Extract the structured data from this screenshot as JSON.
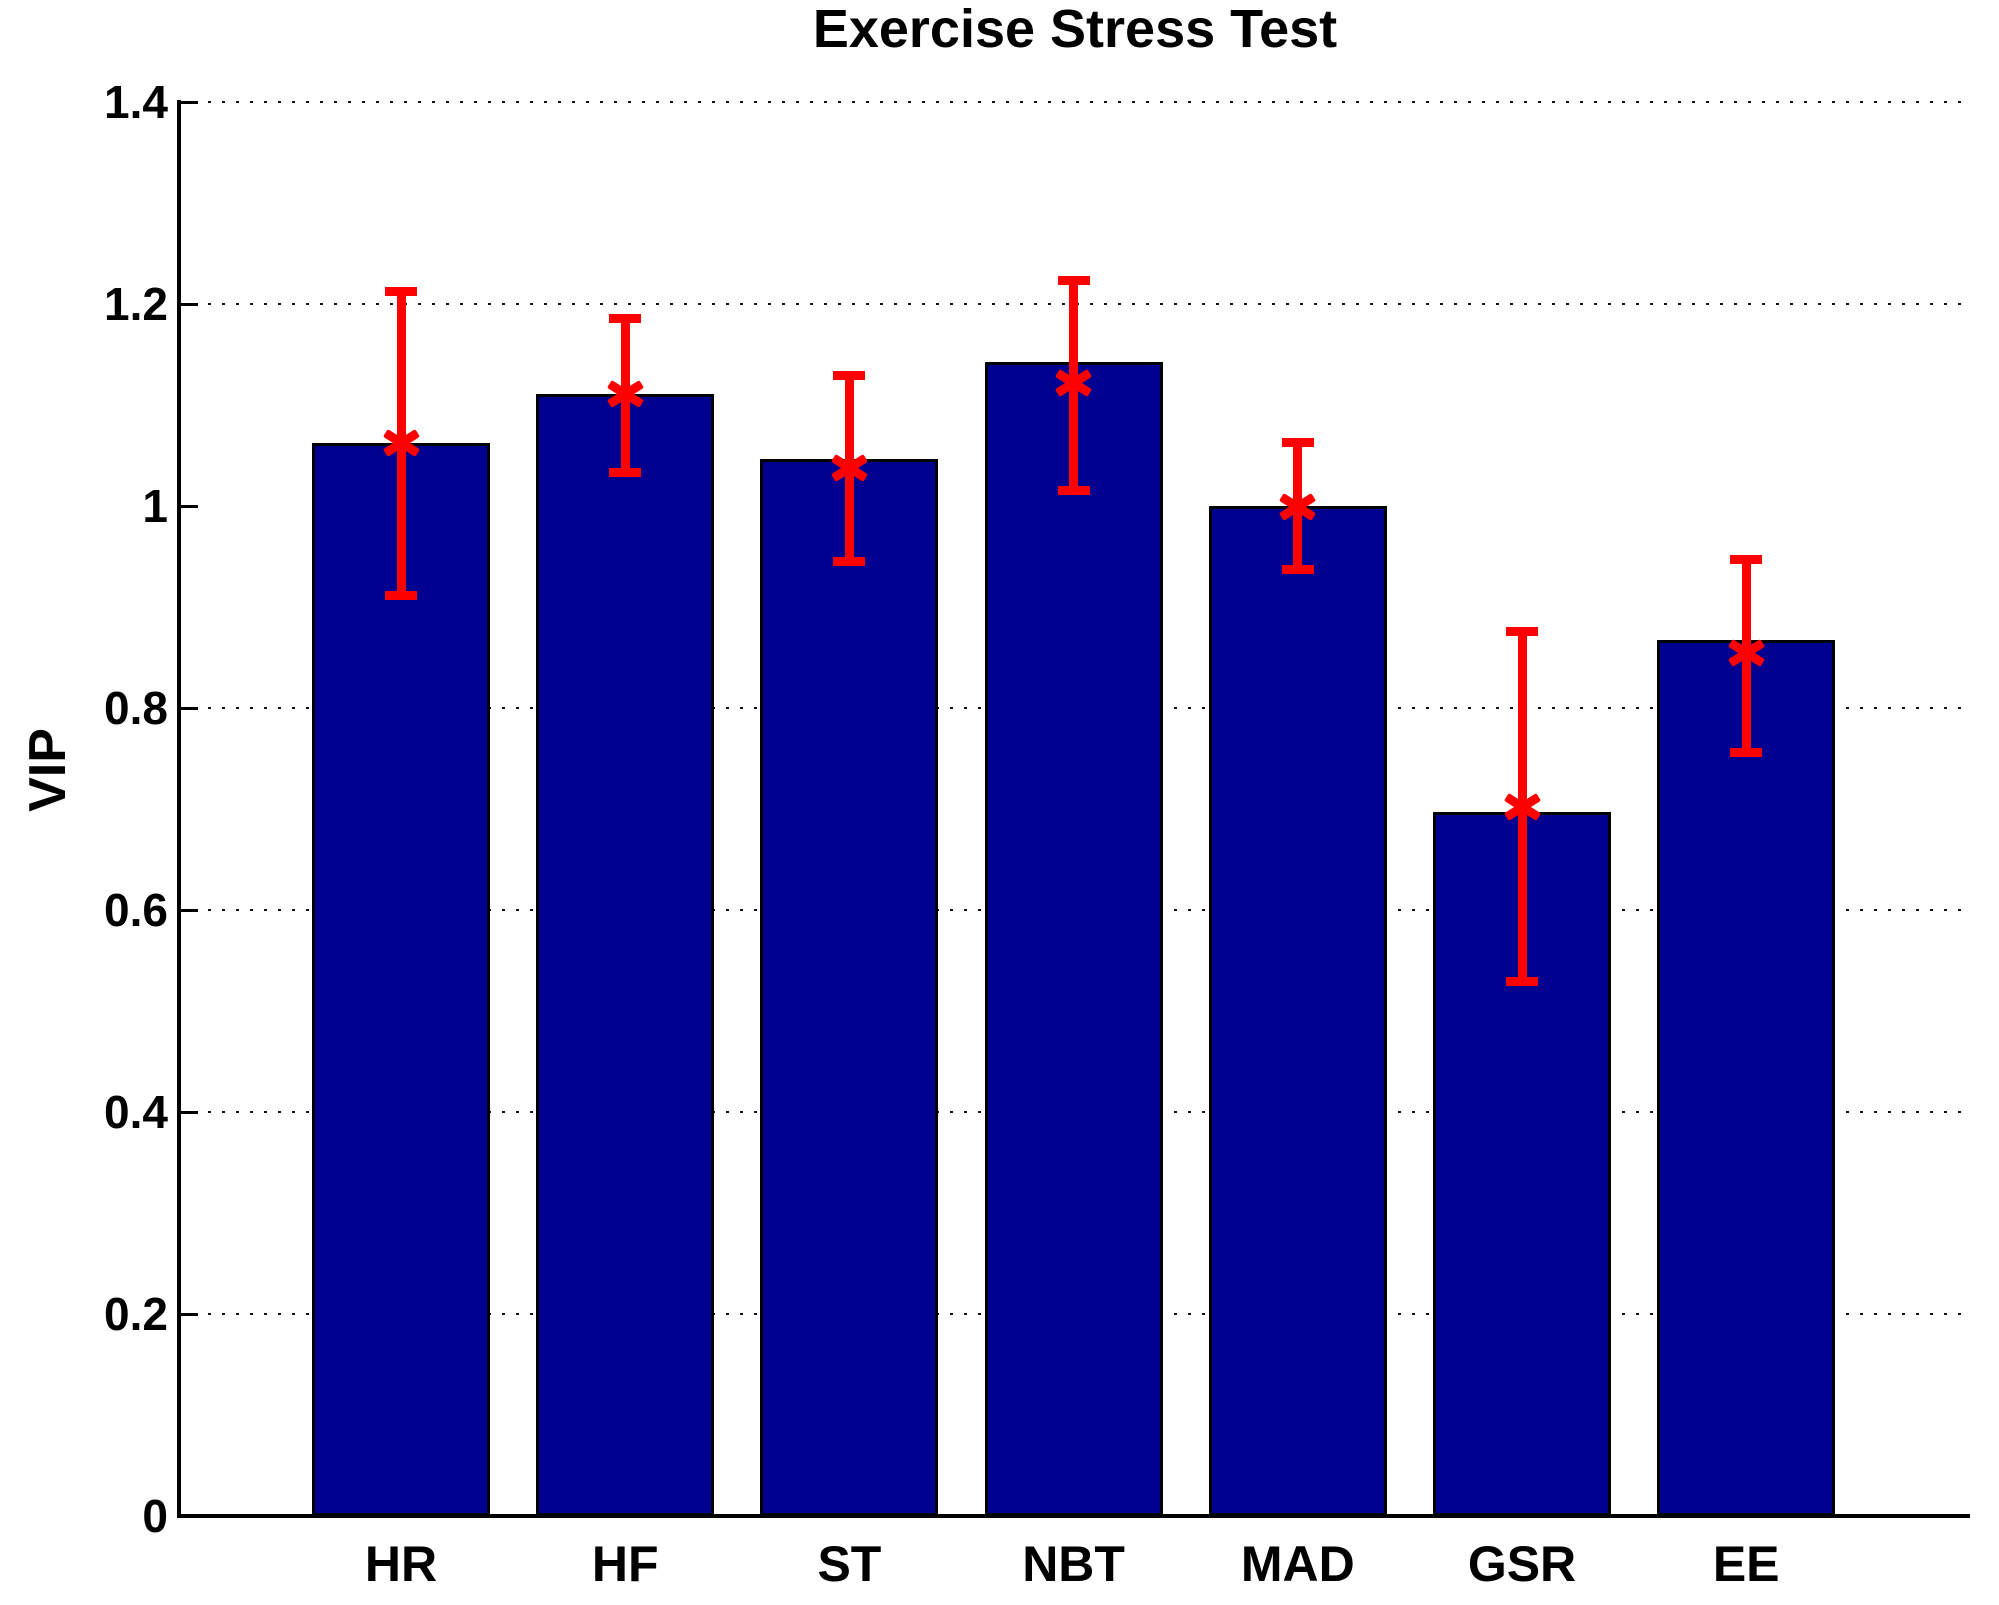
{
  "chart_data": {
    "type": "bar",
    "title": "Exercise Stress Test",
    "xlabel": "",
    "ylabel": "VIP",
    "categories": [
      "HR",
      "HF",
      "ST",
      "NBT",
      "MAD",
      "GSR",
      "EE"
    ],
    "values": [
      1.062,
      1.111,
      1.047,
      1.143,
      1.0,
      0.697,
      0.867
    ],
    "series": [
      {
        "name": "VIP",
        "values": [
          1.062,
          1.111,
          1.047,
          1.143,
          1.0,
          0.697,
          0.867
        ],
        "error_marker_centers": [
          1.062,
          1.111,
          1.038,
          1.122,
          0.999,
          0.702,
          0.854
        ],
        "error_upper": [
          1.213,
          1.186,
          1.13,
          1.224,
          1.063,
          0.876,
          0.948
        ],
        "error_lower": [
          0.912,
          1.034,
          0.946,
          1.016,
          0.938,
          0.53,
          0.756
        ]
      }
    ],
    "ylim": [
      0,
      1.4
    ],
    "yticks": [
      0,
      0.2,
      0.4,
      0.6,
      0.8,
      1,
      1.2,
      1.4
    ],
    "ytick_labels": [
      "0",
      "0.2",
      "0.4",
      "0.6",
      "0.8",
      "1",
      "1.2",
      "1.4"
    ],
    "gridline_ticks": [
      0.2,
      0.4,
      0.6,
      0.8,
      1.2,
      1.4
    ],
    "grid_style": "dotted",
    "legend": null,
    "colors": {
      "bar_fill": "#000090",
      "bar_edge": "#000000",
      "error_bar": "#FF0000",
      "axis": "#000000",
      "background": "#FFFFFF"
    }
  }
}
